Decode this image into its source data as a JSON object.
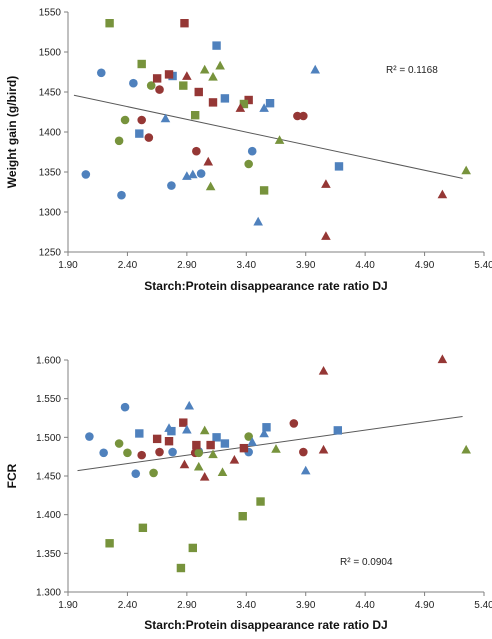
{
  "colors": {
    "blue": "#4f81bd",
    "red": "#953735",
    "green": "#77933c",
    "trendline": "#595959",
    "axis": "#808080"
  },
  "chart_data": [
    {
      "type": "scatter",
      "title": "",
      "xlabel": "Starch:Protein disappearance rate ratio DJ",
      "ylabel": "Weight gain (g/bird)",
      "xlim": [
        1.9,
        5.4
      ],
      "ylim": [
        1250,
        1550
      ],
      "xticks": [
        "1.90",
        "2.40",
        "2.90",
        "3.40",
        "3.90",
        "4.40",
        "4.90",
        "5.40"
      ],
      "yticks": [
        "1250",
        "1300",
        "1350",
        "1400",
        "1450",
        "1500",
        "1550"
      ],
      "grid": false,
      "annotation": "R² = 0.1168",
      "trendline": {
        "x": [
          1.95,
          5.22
        ],
        "y": [
          1446,
          1342
        ]
      },
      "series": [
        {
          "marker": "circle",
          "color": "blue",
          "points": [
            [
              2.05,
              1347
            ],
            [
              2.18,
              1474
            ],
            [
              2.35,
              1321
            ],
            [
              2.45,
              1461
            ],
            [
              2.77,
              1333
            ],
            [
              3.02,
              1348
            ],
            [
              3.45,
              1376
            ]
          ]
        },
        {
          "marker": "circle",
          "color": "red",
          "points": [
            [
              2.52,
              1415
            ],
            [
              2.58,
              1393
            ],
            [
              2.67,
              1453
            ],
            [
              2.98,
              1376
            ],
            [
              3.83,
              1420
            ],
            [
              3.88,
              1420
            ]
          ]
        },
        {
          "marker": "circle",
          "color": "green",
          "points": [
            [
              2.33,
              1389
            ],
            [
              2.38,
              1415
            ],
            [
              2.6,
              1458
            ],
            [
              3.42,
              1360
            ]
          ]
        },
        {
          "marker": "square",
          "color": "blue",
          "points": [
            [
              2.5,
              1398
            ],
            [
              2.78,
              1470
            ],
            [
              3.15,
              1508
            ],
            [
              3.22,
              1442
            ],
            [
              3.6,
              1436
            ],
            [
              4.18,
              1357
            ]
          ]
        },
        {
          "marker": "square",
          "color": "red",
          "points": [
            [
              2.65,
              1467
            ],
            [
              2.75,
              1472
            ],
            [
              2.88,
              1536
            ],
            [
              3.0,
              1450
            ],
            [
              3.12,
              1437
            ],
            [
              3.42,
              1440
            ]
          ]
        },
        {
          "marker": "square",
          "color": "green",
          "points": [
            [
              2.25,
              1536
            ],
            [
              2.52,
              1485
            ],
            [
              2.87,
              1458
            ],
            [
              2.97,
              1421
            ],
            [
              3.38,
              1435
            ],
            [
              3.55,
              1327
            ]
          ]
        },
        {
          "marker": "triangle",
          "color": "blue",
          "points": [
            [
              2.72,
              1417
            ],
            [
              2.9,
              1345
            ],
            [
              2.95,
              1347
            ],
            [
              3.55,
              1430
            ],
            [
              3.5,
              1288
            ],
            [
              3.98,
              1478
            ]
          ]
        },
        {
          "marker": "triangle",
          "color": "red",
          "points": [
            [
              2.9,
              1470
            ],
            [
              3.08,
              1363
            ],
            [
              3.35,
              1430
            ],
            [
              4.07,
              1335
            ],
            [
              4.07,
              1270
            ],
            [
              5.05,
              1322
            ]
          ]
        },
        {
          "marker": "triangle",
          "color": "green",
          "points": [
            [
              3.05,
              1478
            ],
            [
              3.12,
              1469
            ],
            [
              3.18,
              1483
            ],
            [
              3.1,
              1332
            ],
            [
              3.68,
              1390
            ],
            [
              5.25,
              1352
            ]
          ]
        }
      ]
    },
    {
      "type": "scatter",
      "title": "",
      "xlabel": "Starch:Protein disappearance rate ratio DJ",
      "ylabel": "FCR",
      "xlim": [
        1.9,
        5.4
      ],
      "ylim": [
        1.3,
        1.6
      ],
      "xticks": [
        "1.90",
        "2.40",
        "2.90",
        "3.40",
        "3.90",
        "4.40",
        "4.90",
        "5.40"
      ],
      "yticks": [
        "1.300",
        "1.350",
        "1.400",
        "1.450",
        "1.500",
        "1.550",
        "1.600"
      ],
      "grid": false,
      "annotation": "R² = 0.0904",
      "trendline": {
        "x": [
          1.98,
          5.22
        ],
        "y": [
          1.457,
          1.527
        ]
      },
      "series": [
        {
          "marker": "circle",
          "color": "blue",
          "points": [
            [
              2.08,
              1.501
            ],
            [
              2.2,
              1.48
            ],
            [
              2.38,
              1.539
            ],
            [
              2.47,
              1.453
            ],
            [
              2.78,
              1.481
            ],
            [
              3.0,
              1.482
            ],
            [
              3.42,
              1.481
            ]
          ]
        },
        {
          "marker": "circle",
          "color": "red",
          "points": [
            [
              2.52,
              1.477
            ],
            [
              2.67,
              1.481
            ],
            [
              2.97,
              1.48
            ],
            [
              3.8,
              1.518
            ],
            [
              3.88,
              1.481
            ]
          ]
        },
        {
          "marker": "circle",
          "color": "green",
          "points": [
            [
              2.33,
              1.492
            ],
            [
              2.4,
              1.48
            ],
            [
              2.62,
              1.454
            ],
            [
              3.0,
              1.48
            ],
            [
              3.42,
              1.501
            ]
          ]
        },
        {
          "marker": "square",
          "color": "blue",
          "points": [
            [
              2.5,
              1.505
            ],
            [
              2.77,
              1.508
            ],
            [
              3.15,
              1.5
            ],
            [
              3.22,
              1.492
            ],
            [
              3.57,
              1.513
            ],
            [
              4.17,
              1.509
            ]
          ]
        },
        {
          "marker": "square",
          "color": "red",
          "points": [
            [
              2.65,
              1.498
            ],
            [
              2.75,
              1.495
            ],
            [
              2.87,
              1.519
            ],
            [
              2.98,
              1.49
            ],
            [
              3.1,
              1.49
            ],
            [
              3.38,
              1.486
            ]
          ]
        },
        {
          "marker": "square",
          "color": "green",
          "points": [
            [
              2.25,
              1.363
            ],
            [
              2.53,
              1.383
            ],
            [
              2.85,
              1.331
            ],
            [
              2.95,
              1.357
            ],
            [
              3.37,
              1.398
            ],
            [
              3.52,
              1.417
            ]
          ]
        },
        {
          "marker": "triangle",
          "color": "blue",
          "points": [
            [
              2.75,
              1.512
            ],
            [
              2.92,
              1.541
            ],
            [
              2.9,
              1.51
            ],
            [
              3.45,
              1.494
            ],
            [
              3.55,
              1.505
            ],
            [
              3.9,
              1.457
            ]
          ]
        },
        {
          "marker": "triangle",
          "color": "red",
          "points": [
            [
              2.88,
              1.465
            ],
            [
              3.05,
              1.449
            ],
            [
              3.3,
              1.471
            ],
            [
              4.05,
              1.586
            ],
            [
              4.05,
              1.484
            ],
            [
              5.05,
              1.601
            ]
          ]
        },
        {
          "marker": "triangle",
          "color": "green",
          "points": [
            [
              3.05,
              1.509
            ],
            [
              3.12,
              1.478
            ],
            [
              3.2,
              1.455
            ],
            [
              3.0,
              1.462
            ],
            [
              3.65,
              1.485
            ],
            [
              5.25,
              1.484
            ]
          ]
        }
      ]
    }
  ]
}
